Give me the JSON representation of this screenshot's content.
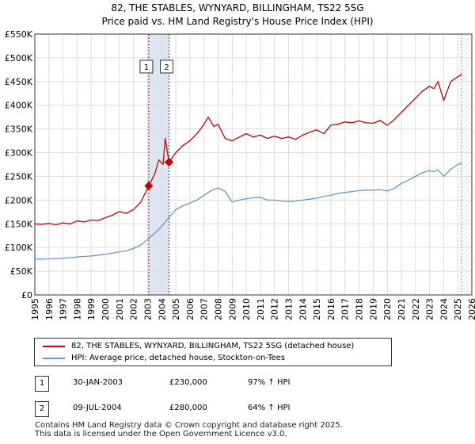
{
  "title_line1": "82, THE STABLES, WYNYARD, BILLINGHAM, TS22 5SG",
  "title_line2": "Price paid vs. HM Land Registry's House Price Index (HPI)",
  "chart_data": {
    "type": "line",
    "xlim": [
      1995,
      2026
    ],
    "ylim": [
      0,
      550000
    ],
    "x_ticks": [
      1995,
      1996,
      1997,
      1998,
      1999,
      2000,
      2001,
      2002,
      2003,
      2004,
      2005,
      2006,
      2007,
      2008,
      2009,
      2010,
      2011,
      2012,
      2013,
      2014,
      2015,
      2016,
      2017,
      2018,
      2019,
      2020,
      2021,
      2022,
      2023,
      2024,
      2025,
      2026
    ],
    "y_ticks": [
      0,
      50000,
      100000,
      150000,
      200000,
      250000,
      300000,
      350000,
      400000,
      450000,
      500000,
      550000
    ],
    "y_tick_labels": [
      "£0",
      "£50K",
      "£100K",
      "£150K",
      "£200K",
      "£250K",
      "£300K",
      "£350K",
      "£400K",
      "£450K",
      "£500K",
      "£550K"
    ],
    "grid": true,
    "colors": {
      "property": "#cc0000",
      "hpi": "#6699cc",
      "shade": "#dde6f5",
      "vline": "#cc0000",
      "forecast": "#999999"
    },
    "forecast_from": 2025.25,
    "sales": [
      {
        "label": "1",
        "x": 2003.08,
        "price": 230000
      },
      {
        "label": "2",
        "x": 2004.52,
        "price": 280000
      }
    ],
    "series": [
      {
        "name": "82, THE STABLES, WYNYARD, BILLINGHAM, TS22 5SG (detached house)",
        "key": "property",
        "x": [
          1995,
          1995.5,
          1996,
          1996.5,
          1997,
          1997.5,
          1998,
          1998.5,
          1999,
          1999.5,
          2000,
          2000.5,
          2001,
          2001.5,
          2002,
          2002.5,
          2003.08,
          2003.5,
          2003.8,
          2004.1,
          2004.25,
          2004.52,
          2005,
          2005.5,
          2006,
          2006.5,
          2007,
          2007.3,
          2007.7,
          2008,
          2008.5,
          2009,
          2009.5,
          2010,
          2010.5,
          2011,
          2011.5,
          2012,
          2012.5,
          2013,
          2013.5,
          2014,
          2014.5,
          2015,
          2015.5,
          2016,
          2016.5,
          2017,
          2017.5,
          2018,
          2018.5,
          2019,
          2019.5,
          2020,
          2020.5,
          2021,
          2021.5,
          2022,
          2022.5,
          2023,
          2023.3,
          2023.6,
          2024,
          2024.5,
          2025,
          2025.3
        ],
        "values": [
          150000,
          149000,
          151000,
          148000,
          152000,
          150000,
          156000,
          154000,
          158000,
          157000,
          163000,
          168000,
          176000,
          172000,
          180000,
          195000,
          230000,
          255000,
          285000,
          275000,
          330000,
          280000,
          300000,
          315000,
          325000,
          340000,
          360000,
          375000,
          355000,
          360000,
          330000,
          325000,
          333000,
          340000,
          333000,
          337000,
          330000,
          335000,
          330000,
          333000,
          328000,
          337000,
          343000,
          348000,
          340000,
          358000,
          360000,
          365000,
          363000,
          367000,
          363000,
          362000,
          368000,
          358000,
          370000,
          385000,
          400000,
          415000,
          430000,
          440000,
          435000,
          450000,
          410000,
          450000,
          460000,
          465000
        ]
      },
      {
        "name": "HPI: Average price, detached house, Stockton-on-Tees",
        "key": "hpi",
        "x": [
          1995,
          1995.5,
          1996,
          1996.5,
          1997,
          1997.5,
          1998,
          1998.5,
          1999,
          1999.5,
          2000,
          2000.5,
          2001,
          2001.5,
          2002,
          2002.5,
          2003,
          2003.5,
          2004,
          2004.5,
          2005,
          2005.5,
          2006,
          2006.5,
          2007,
          2007.5,
          2008,
          2008.5,
          2009,
          2009.5,
          2010,
          2010.5,
          2011,
          2011.5,
          2012,
          2012.5,
          2013,
          2013.5,
          2014,
          2014.5,
          2015,
          2015.5,
          2016,
          2016.5,
          2017,
          2017.5,
          2018,
          2018.5,
          2019,
          2019.5,
          2020,
          2020.5,
          2021,
          2021.5,
          2022,
          2022.5,
          2023,
          2023.3,
          2023.6,
          2024,
          2024.5,
          2025,
          2025.3
        ],
        "values": [
          76000,
          75500,
          76000,
          76500,
          77500,
          78500,
          80000,
          81000,
          82000,
          84000,
          86000,
          88000,
          91000,
          93000,
          98000,
          105000,
          117000,
          130000,
          145000,
          163000,
          180000,
          188000,
          194000,
          200000,
          210000,
          220000,
          226000,
          218000,
          196000,
          200000,
          203000,
          205000,
          206000,
          200000,
          200000,
          198000,
          197000,
          198000,
          200000,
          202000,
          204000,
          208000,
          210000,
          214000,
          216000,
          218000,
          220000,
          221000,
          221000,
          222000,
          219000,
          225000,
          235000,
          242000,
          250000,
          258000,
          262000,
          260000,
          264000,
          250000,
          265000,
          275000,
          278000
        ]
      }
    ]
  },
  "legend": {
    "property_label": "82, THE STABLES, WYNYARD, BILLINGHAM, TS22 5SG (detached house)",
    "hpi_label": "HPI: Average price, detached house, Stockton-on-Tees"
  },
  "sales_table": [
    {
      "num": "1",
      "date": "30-JAN-2003",
      "price": "£230,000",
      "hpi": "97% ↑ HPI"
    },
    {
      "num": "2",
      "date": "09-JUL-2004",
      "price": "£280,000",
      "hpi": "64% ↑ HPI"
    }
  ],
  "footer_line1": "Contains HM Land Registry data © Crown copyright and database right 2025.",
  "footer_line2": "This data is licensed under the Open Government Licence v3.0."
}
